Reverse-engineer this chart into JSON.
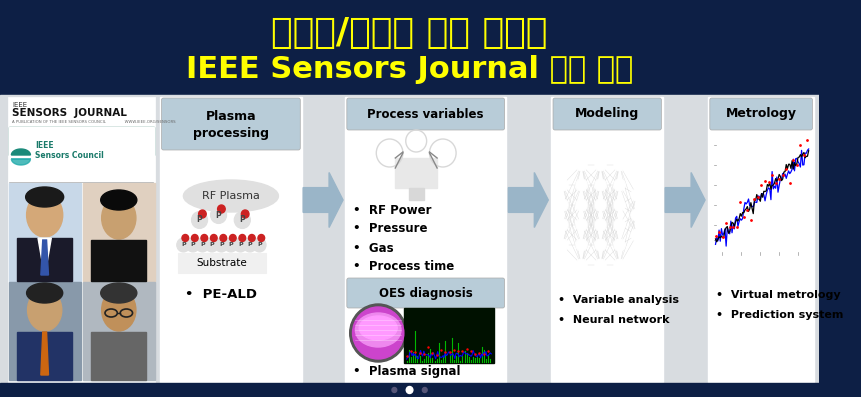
{
  "title_line1": "윤일구/김형준 교수 연구팀",
  "title_line2": "IEEE Sensors Journal 논문 게재",
  "title_color": "#FFFF00",
  "bg_dark": "#0d1f45",
  "bg_content": "#e8eaec",
  "white": "#ffffff",
  "header_box_color": "#c5d5e5",
  "arrow_color": "#9ab5c8",
  "plasma_box_label": "Plasma\nprocessing",
  "process_var_label": "Process variables",
  "oes_label": "OES diagnosis",
  "modeling_label": "Modeling",
  "metrology_label": "Metrology",
  "process_bullets": [
    "RF Power",
    "Pressure",
    "Gas",
    "Process time"
  ],
  "modeling_bullets": [
    "Variable analysis",
    "Neural network"
  ],
  "metrology_bullets": [
    "Virtual metrology",
    "Prediction system"
  ],
  "peald_label": "PE-ALD",
  "substrate_label": "Substrate",
  "rf_plasma_label": "RF Plasma",
  "plasma_signal_label": "Plasma signal",
  "title1_fontsize": 26,
  "title2_fontsize": 22
}
